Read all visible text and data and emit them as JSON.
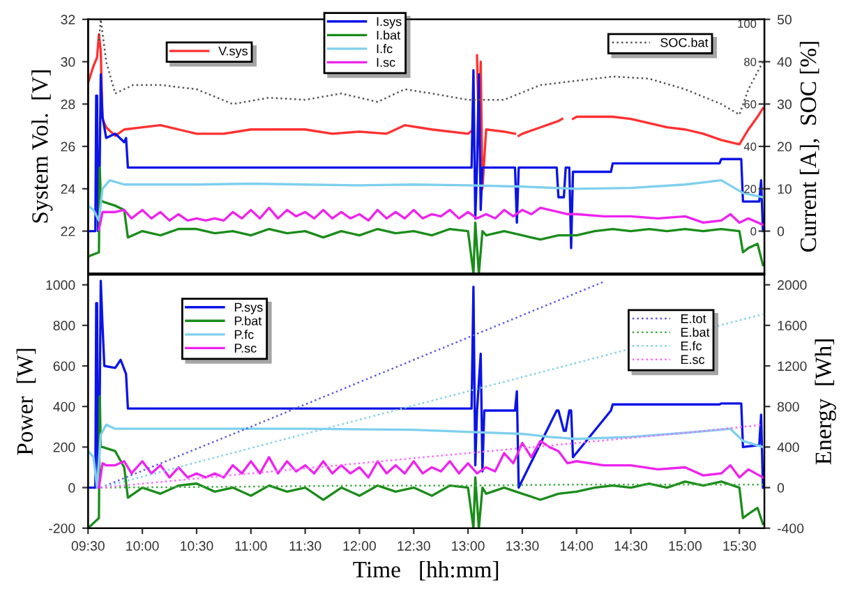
{
  "chart_data": [
    {
      "type": "line",
      "ylabel": "System Vol.  [V]",
      "y2label": "Current [A],  SOC [%]",
      "tick_labels": "y",
      "legend": "top",
      "xlim": [
        9.5,
        15.73
      ],
      "xticks": [
        {
          "value": 9.5,
          "label": null
        },
        {
          "value": 10,
          "label": null
        },
        {
          "value": 10.5,
          "label": null
        },
        {
          "value": 11,
          "label": null
        },
        {
          "value": 11.5,
          "label": null
        },
        {
          "value": 12,
          "label": null
        },
        {
          "value": 12.5,
          "label": null
        },
        {
          "value": 13,
          "label": null
        },
        {
          "value": 13.5,
          "label": null
        },
        {
          "value": 14,
          "label": null
        },
        {
          "value": 14.5,
          "label": null
        },
        {
          "value": 15,
          "label": null
        },
        {
          "value": 15.5,
          "label": null
        }
      ],
      "ylim": [
        20,
        32
      ],
      "yticks": [
        22,
        24,
        26,
        28,
        30,
        32
      ],
      "y2lim": [
        -10,
        50
      ],
      "y2ticks": [
        0,
        10,
        20,
        30,
        40,
        50
      ],
      "y3lim": [
        -20,
        100
      ],
      "y3ticks": [
        0,
        20,
        40,
        60,
        80,
        100
      ],
      "series": [
        {
          "name": "V.sys",
          "color": "#ff3030",
          "axis": "y",
          "line_style": "solid",
          "x": [
            9.5,
            9.55,
            9.583,
            9.6,
            9.617,
            9.633,
            9.667,
            9.75,
            9.833,
            10,
            10.167,
            10.333,
            10.5,
            10.75,
            11,
            11.25,
            11.5,
            11.75,
            12,
            12.25,
            12.417,
            12.667,
            13,
            13.05,
            13.067,
            13.083,
            13.1,
            13.117,
            13.133,
            13.167,
            13.333,
            13.433,
            13.45,
            13.467,
            13.5,
            13.667,
            13.833,
            13.867,
            13.883,
            13.967,
            14,
            14.167,
            14.333,
            14.5,
            14.667,
            14.833,
            15,
            15.167,
            15.333,
            15.5,
            15.583,
            15.667,
            15.717
          ],
          "values": [
            29.0,
            29.8,
            30.2,
            31.3,
            30.5,
            27.3,
            26.9,
            26.5,
            26.8,
            26.9,
            27.0,
            26.8,
            26.6,
            26.6,
            26.8,
            26.8,
            26.8,
            26.6,
            26.7,
            26.6,
            27.0,
            26.8,
            26.6,
            26.8,
            null,
            30.3,
            26.7,
            30.0,
            24.0,
            26.8,
            26.7,
            26.6,
            null,
            26.5,
            26.6,
            26.9,
            27.2,
            27.3,
            null,
            27.3,
            27.4,
            27.4,
            27.4,
            27.3,
            27.1,
            26.9,
            26.8,
            26.6,
            26.3,
            26.1,
            26.8,
            27.4,
            27.8
          ]
        },
        {
          "name": "I.sys",
          "color": "#0a14e6",
          "axis": "y2",
          "line_style": "solid",
          "x": [
            9.5,
            9.567,
            9.575,
            9.583,
            9.592,
            9.6,
            9.617,
            9.633,
            9.667,
            9.75,
            9.833,
            9.85,
            9.867,
            10.5,
            11.5,
            12.5,
            13.033,
            13.05,
            13.067,
            13.083,
            13.1,
            13.117,
            13.133,
            13.167,
            13.433,
            13.45,
            13.467,
            13.817,
            13.833,
            13.883,
            13.9,
            13.933,
            13.95,
            13.967,
            14.317,
            14.333,
            15.317,
            15.333,
            15.517,
            15.533,
            15.683,
            15.7,
            15.717
          ],
          "values": [
            0,
            0,
            32,
            32,
            0,
            0,
            37,
            27,
            22,
            23,
            21,
            22,
            15,
            15,
            15,
            15,
            15,
            38,
            3,
            15,
            37,
            5,
            15,
            15,
            15,
            2,
            15,
            15,
            8,
            8,
            15,
            15,
            -4,
            14,
            14,
            16,
            16,
            17,
            17,
            7,
            7,
            12,
            0
          ]
        },
        {
          "name": "I.bat",
          "color": "#1a8c1a",
          "axis": "y2",
          "line_style": "solid",
          "x": [
            9.5,
            9.6,
            9.608,
            9.617,
            9.633,
            9.75,
            9.833,
            9.867,
            10,
            10.167,
            10.333,
            10.5,
            10.667,
            10.833,
            11,
            11.167,
            11.333,
            11.5,
            11.667,
            11.833,
            12,
            12.167,
            12.333,
            12.5,
            12.667,
            12.833,
            13,
            13.05,
            13.067,
            13.1,
            13.133,
            13.167,
            13.333,
            13.5,
            13.667,
            13.833,
            14,
            14.167,
            14.333,
            14.5,
            14.667,
            14.833,
            15,
            15.167,
            15.333,
            15.5,
            15.533,
            15.583,
            15.667,
            15.717
          ],
          "values": [
            -6,
            -5,
            15,
            7.5,
            7,
            6,
            5,
            -1.5,
            0,
            -1,
            0.5,
            0.5,
            -0.5,
            0,
            -1,
            0.5,
            -0.5,
            0,
            -1.5,
            0,
            -1,
            0.5,
            -0.5,
            0,
            -1,
            0.5,
            0,
            -10,
            2,
            -10,
            0,
            -1,
            0,
            -1,
            -2,
            -1,
            -1,
            0,
            0.5,
            0,
            0.5,
            0,
            0.5,
            0,
            0.5,
            0,
            -5,
            -4,
            -3,
            -8
          ]
        },
        {
          "name": "I.fc",
          "color": "#7fcfee",
          "axis": "y2",
          "line_style": "solid",
          "x": [
            9.5,
            9.55,
            9.6,
            9.633,
            9.7,
            9.833,
            10.5,
            11,
            11.5,
            12,
            12.5,
            13,
            13.5,
            14,
            14.5,
            15,
            15.333,
            15.533,
            15.717
          ],
          "values": [
            6,
            5,
            2.5,
            10,
            12,
            11,
            11,
            11.2,
            11,
            10.8,
            11,
            10.8,
            10.5,
            10,
            10.2,
            11,
            12,
            9,
            8
          ]
        },
        {
          "name": "I.sc",
          "color": "#ee22ee",
          "axis": "y2",
          "line_style": "solid",
          "x": [
            9.6,
            9.633,
            9.667,
            9.75,
            9.833,
            9.9,
            10,
            10.083,
            10.167,
            10.25,
            10.333,
            10.417,
            10.5,
            10.583,
            10.667,
            10.75,
            10.833,
            10.917,
            11,
            11.083,
            11.167,
            11.25,
            11.333,
            11.417,
            11.5,
            11.583,
            11.667,
            11.75,
            11.833,
            11.917,
            12,
            12.083,
            12.167,
            12.25,
            12.333,
            12.417,
            12.5,
            12.583,
            12.667,
            12.75,
            12.833,
            12.917,
            13,
            13.083,
            13.167,
            13.25,
            13.333,
            13.417,
            13.5,
            13.583,
            13.667,
            13.75,
            13.833,
            13.917,
            14,
            14.25,
            14.5,
            14.75,
            15,
            15.167,
            15.333,
            15.417,
            15.5,
            15.583,
            15.717
          ],
          "values": [
            0.3,
            4.5,
            4.5,
            4.5,
            5,
            3,
            5,
            3,
            4.5,
            2.5,
            4,
            2.5,
            3,
            2.5,
            3,
            2.5,
            4.5,
            3,
            5,
            3,
            5.5,
            3,
            5,
            3.5,
            4.5,
            3,
            5,
            3,
            4.5,
            3,
            4,
            2.5,
            5,
            3,
            4.5,
            3,
            5,
            3,
            4,
            3.5,
            5,
            3,
            4.5,
            3,
            4,
            3,
            5,
            3.5,
            5,
            4,
            5.5,
            5,
            4.5,
            4,
            4,
            3.5,
            3.5,
            3,
            3.5,
            2,
            2.5,
            4,
            2,
            3,
            1.5
          ]
        },
        {
          "name": "SOC.bat",
          "color": "#555555",
          "axis": "y3",
          "line_style": "dotted",
          "x": [
            9.6,
            9.617,
            9.667,
            9.75,
            9.917,
            10.167,
            10.5,
            10.833,
            11.167,
            11.5,
            11.833,
            12.167,
            12.417,
            12.667,
            13,
            13.333,
            13.667,
            14,
            14.333,
            14.667,
            15,
            15.333,
            15.5,
            15.583,
            15.717
          ],
          "values": [
            90,
            100,
            80,
            65,
            69,
            69,
            67,
            60,
            63,
            62,
            65,
            61,
            67,
            65,
            62,
            62,
            69,
            71,
            73,
            72,
            67,
            60,
            55,
            67,
            80
          ]
        }
      ]
    },
    {
      "type": "line",
      "xlabel": "Time   [hh:mm]",
      "ylabel": "Power  [W]",
      "y2label": "Energy  [Wh]",
      "legend": "top",
      "xlim": [
        9.5,
        15.73
      ],
      "xticks": [
        {
          "value": 9.5,
          "label": "09:30"
        },
        {
          "value": 10,
          "label": "10:00"
        },
        {
          "value": 10.5,
          "label": "10:30"
        },
        {
          "value": 11,
          "label": "11:00"
        },
        {
          "value": 11.5,
          "label": "11:30"
        },
        {
          "value": 12,
          "label": "12:00"
        },
        {
          "value": 12.5,
          "label": "12:30"
        },
        {
          "value": 13,
          "label": "13:00"
        },
        {
          "value": 13.5,
          "label": "13:30"
        },
        {
          "value": 14,
          "label": "14:00"
        },
        {
          "value": 14.5,
          "label": "14:30"
        },
        {
          "value": 15,
          "label": "15:00"
        },
        {
          "value": 15.5,
          "label": "15:30"
        }
      ],
      "ylim": [
        -200,
        1050
      ],
      "yticks": [
        -200,
        0,
        200,
        400,
        600,
        800,
        1000
      ],
      "y2lim": [
        -400,
        2100
      ],
      "y2ticks": [
        -400,
        0,
        400,
        800,
        1200,
        1600,
        2000
      ],
      "series": [
        {
          "name": "P.sys",
          "color": "#0a14e6",
          "axis": "y",
          "line_style": "solid",
          "x": [
            9.5,
            9.567,
            9.575,
            9.583,
            9.592,
            9.6,
            9.617,
            9.633,
            9.65,
            9.75,
            9.8,
            9.85,
            9.867,
            10.5,
            11.5,
            12.5,
            13.033,
            13.05,
            13.067,
            13.083,
            13.117,
            13.133,
            13.15,
            13.433,
            13.45,
            13.467,
            13.817,
            13.833,
            13.883,
            13.9,
            13.933,
            13.95,
            13.967,
            14.317,
            14.333,
            15.317,
            15.333,
            15.517,
            15.533,
            15.683,
            15.7,
            15.717
          ],
          "values": [
            0,
            0,
            910,
            910,
            0,
            0,
            1020,
            800,
            600,
            590,
            630,
            560,
            390,
            390,
            390,
            390,
            390,
            990,
            110,
            380,
            660,
            80,
            380,
            380,
            475,
            0,
            380,
            380,
            280,
            280,
            380,
            380,
            150,
            380,
            410,
            410,
            415,
            415,
            200,
            210,
            360,
            0
          ]
        },
        {
          "name": "P.bat",
          "color": "#1a8c1a",
          "axis": "y",
          "line_style": "solid",
          "x": [
            9.5,
            9.6,
            9.608,
            9.617,
            9.633,
            9.75,
            9.833,
            9.867,
            10,
            10.167,
            10.333,
            10.5,
            10.667,
            10.833,
            11,
            11.167,
            11.333,
            11.5,
            11.667,
            11.833,
            12,
            12.167,
            12.333,
            12.5,
            12.667,
            12.833,
            13,
            13.05,
            13.067,
            13.1,
            13.133,
            13.167,
            13.333,
            13.5,
            13.667,
            13.833,
            14,
            14.167,
            14.333,
            14.5,
            14.667,
            14.833,
            15,
            15.167,
            15.333,
            15.5,
            15.533,
            15.583,
            15.667,
            15.717
          ],
          "values": [
            -200,
            -150,
            450,
            200,
            200,
            180,
            100,
            -50,
            0,
            -30,
            10,
            20,
            -20,
            0,
            -40,
            10,
            -20,
            0,
            -60,
            0,
            -40,
            10,
            -20,
            0,
            -40,
            10,
            0,
            -200,
            50,
            -200,
            0,
            -30,
            0,
            -30,
            -60,
            -30,
            -20,
            0,
            10,
            0,
            20,
            0,
            30,
            10,
            30,
            0,
            -150,
            -130,
            -100,
            -180
          ]
        },
        {
          "name": "P.fc",
          "color": "#7fcfee",
          "axis": "y",
          "line_style": "solid",
          "x": [
            9.5,
            9.55,
            9.583,
            9.617,
            9.667,
            9.75,
            10.5,
            11.5,
            12.5,
            13,
            13.5,
            13.75,
            14,
            14.5,
            15,
            15.417,
            15.533,
            15.717
          ],
          "values": [
            180,
            150,
            0,
            260,
            310,
            290,
            290,
            290,
            285,
            275,
            265,
            250,
            240,
            250,
            270,
            290,
            230,
            200
          ]
        },
        {
          "name": "P.sc",
          "color": "#ee22ee",
          "axis": "y",
          "line_style": "solid",
          "x": [
            9.6,
            9.633,
            9.667,
            9.75,
            9.833,
            9.9,
            10,
            10.083,
            10.167,
            10.25,
            10.333,
            10.417,
            10.5,
            10.583,
            10.667,
            10.75,
            10.833,
            10.917,
            11,
            11.083,
            11.167,
            11.25,
            11.333,
            11.417,
            11.5,
            11.583,
            11.667,
            11.75,
            11.833,
            11.917,
            12,
            12.083,
            12.167,
            12.25,
            12.333,
            12.417,
            12.5,
            12.583,
            12.667,
            12.75,
            12.833,
            12.917,
            13,
            13.083,
            13.167,
            13.25,
            13.333,
            13.417,
            13.5,
            13.583,
            13.667,
            13.75,
            13.833,
            13.917,
            14,
            14.25,
            14.5,
            14.75,
            15,
            15.167,
            15.333,
            15.417,
            15.5,
            15.583,
            15.717
          ],
          "values": [
            0,
            120,
            110,
            110,
            130,
            70,
            130,
            70,
            110,
            50,
            100,
            50,
            70,
            50,
            70,
            50,
            110,
            70,
            130,
            70,
            150,
            70,
            130,
            80,
            110,
            70,
            130,
            70,
            110,
            70,
            100,
            50,
            130,
            70,
            110,
            70,
            130,
            70,
            100,
            80,
            130,
            70,
            120,
            70,
            100,
            80,
            170,
            120,
            220,
            150,
            230,
            200,
            180,
            120,
            130,
            110,
            110,
            90,
            100,
            60,
            70,
            110,
            50,
            90,
            50
          ]
        },
        {
          "name": "E.tot",
          "color": "#5a5ae0",
          "axis": "y2",
          "line_style": "dotted",
          "x": [
            9.617,
            11,
            12,
            13,
            14,
            14.25
          ],
          "values": [
            0,
            600,
            1040,
            1480,
            1920,
            2030
          ]
        },
        {
          "name": "E.bat",
          "color": "#44aa44",
          "axis": "y2",
          "line_style": "dotted",
          "x": [
            9.617,
            11,
            12,
            13,
            14,
            15.717
          ],
          "values": [
            0,
            10,
            20,
            20,
            30,
            30
          ]
        },
        {
          "name": "E.fc",
          "color": "#7fcfee",
          "axis": "y2",
          "line_style": "dotted",
          "x": [
            9.617,
            11,
            12,
            13,
            14,
            14.5,
            15.5,
            15.717
          ],
          "values": [
            0,
            390,
            670,
            950,
            1230,
            1370,
            1650,
            1710
          ]
        },
        {
          "name": "E.sc",
          "color": "#ff66ff",
          "axis": "y2",
          "line_style": "dotted",
          "x": [
            9.617,
            11,
            12,
            13,
            14,
            15,
            15.717
          ],
          "values": [
            0,
            140,
            240,
            340,
            440,
            540,
            620
          ]
        }
      ]
    }
  ]
}
